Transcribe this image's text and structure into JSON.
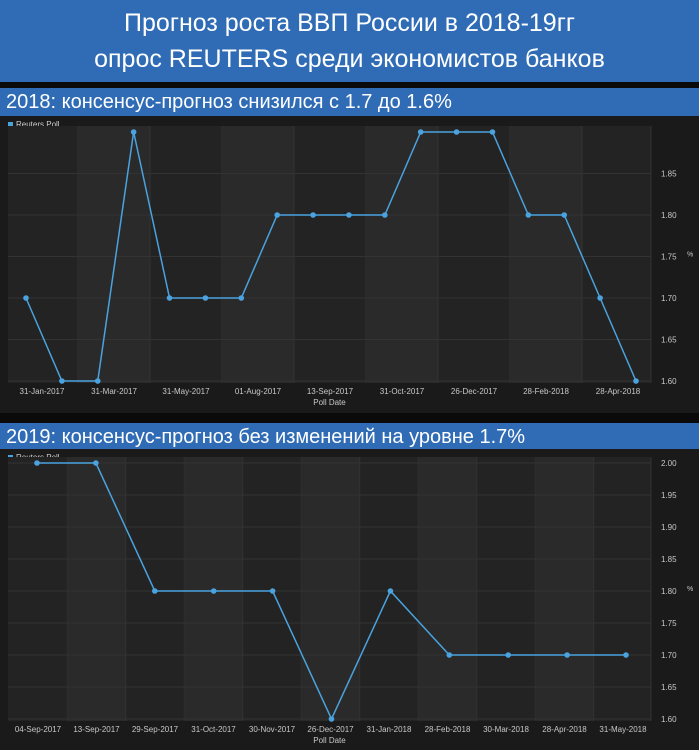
{
  "header": {
    "title_line1": "Прогноз роста ВВП России в 2018-19гг",
    "title_line2": "опрос REUTERS среди экономистов банков"
  },
  "chart_data": [
    {
      "type": "line",
      "section_title": "2018: консенсус-прогноз снизился с 1.7 до 1.6%",
      "legend": "Reuters Poll",
      "xlabel": "Poll Date",
      "ylabel": "%",
      "ylim": [
        1.6,
        1.9
      ],
      "yticks": [
        "1.60",
        "1.65",
        "1.70",
        "1.75",
        "1.80",
        "1.85"
      ],
      "xtick_labels": [
        "31-Jan-2017",
        "31-Mar-2017",
        "31-May-2017",
        "01-Aug-2017",
        "13-Sep-2017",
        "31-Oct-2017",
        "26-Dec-2017",
        "28-Feb-2018",
        "28-Apr-2018"
      ],
      "series": [
        {
          "values": [
            1.7,
            1.6,
            1.6,
            1.9,
            1.7,
            1.7,
            1.7,
            1.8,
            1.8,
            1.8,
            1.8,
            1.9,
            1.9,
            1.9,
            1.8,
            1.8,
            1.7,
            1.6
          ]
        }
      ],
      "grid": true,
      "color": "#4aa3df"
    },
    {
      "type": "line",
      "section_title": "2019: консенсус-прогноз без изменений на уровне 1.7%",
      "legend": "Reuters Poll",
      "xlabel": "Poll Date",
      "ylabel": "%",
      "ylim": [
        1.6,
        2.0
      ],
      "yticks": [
        "1.60",
        "1.65",
        "1.70",
        "1.75",
        "1.80",
        "1.85",
        "1.90",
        "1.95",
        "2.00"
      ],
      "xtick_labels": [
        "04-Sep-2017",
        "13-Sep-2017",
        "29-Sep-2017",
        "31-Oct-2017",
        "30-Nov-2017",
        "26-Dec-2017",
        "31-Jan-2018",
        "28-Feb-2018",
        "30-Mar-2018",
        "28-Apr-2018",
        "31-May-2018"
      ],
      "series": [
        {
          "values": [
            2.0,
            2.0,
            1.8,
            1.8,
            1.8,
            1.6,
            1.8,
            1.7,
            1.7,
            1.7,
            1.7
          ]
        }
      ],
      "grid": true,
      "color": "#4aa3df"
    }
  ]
}
